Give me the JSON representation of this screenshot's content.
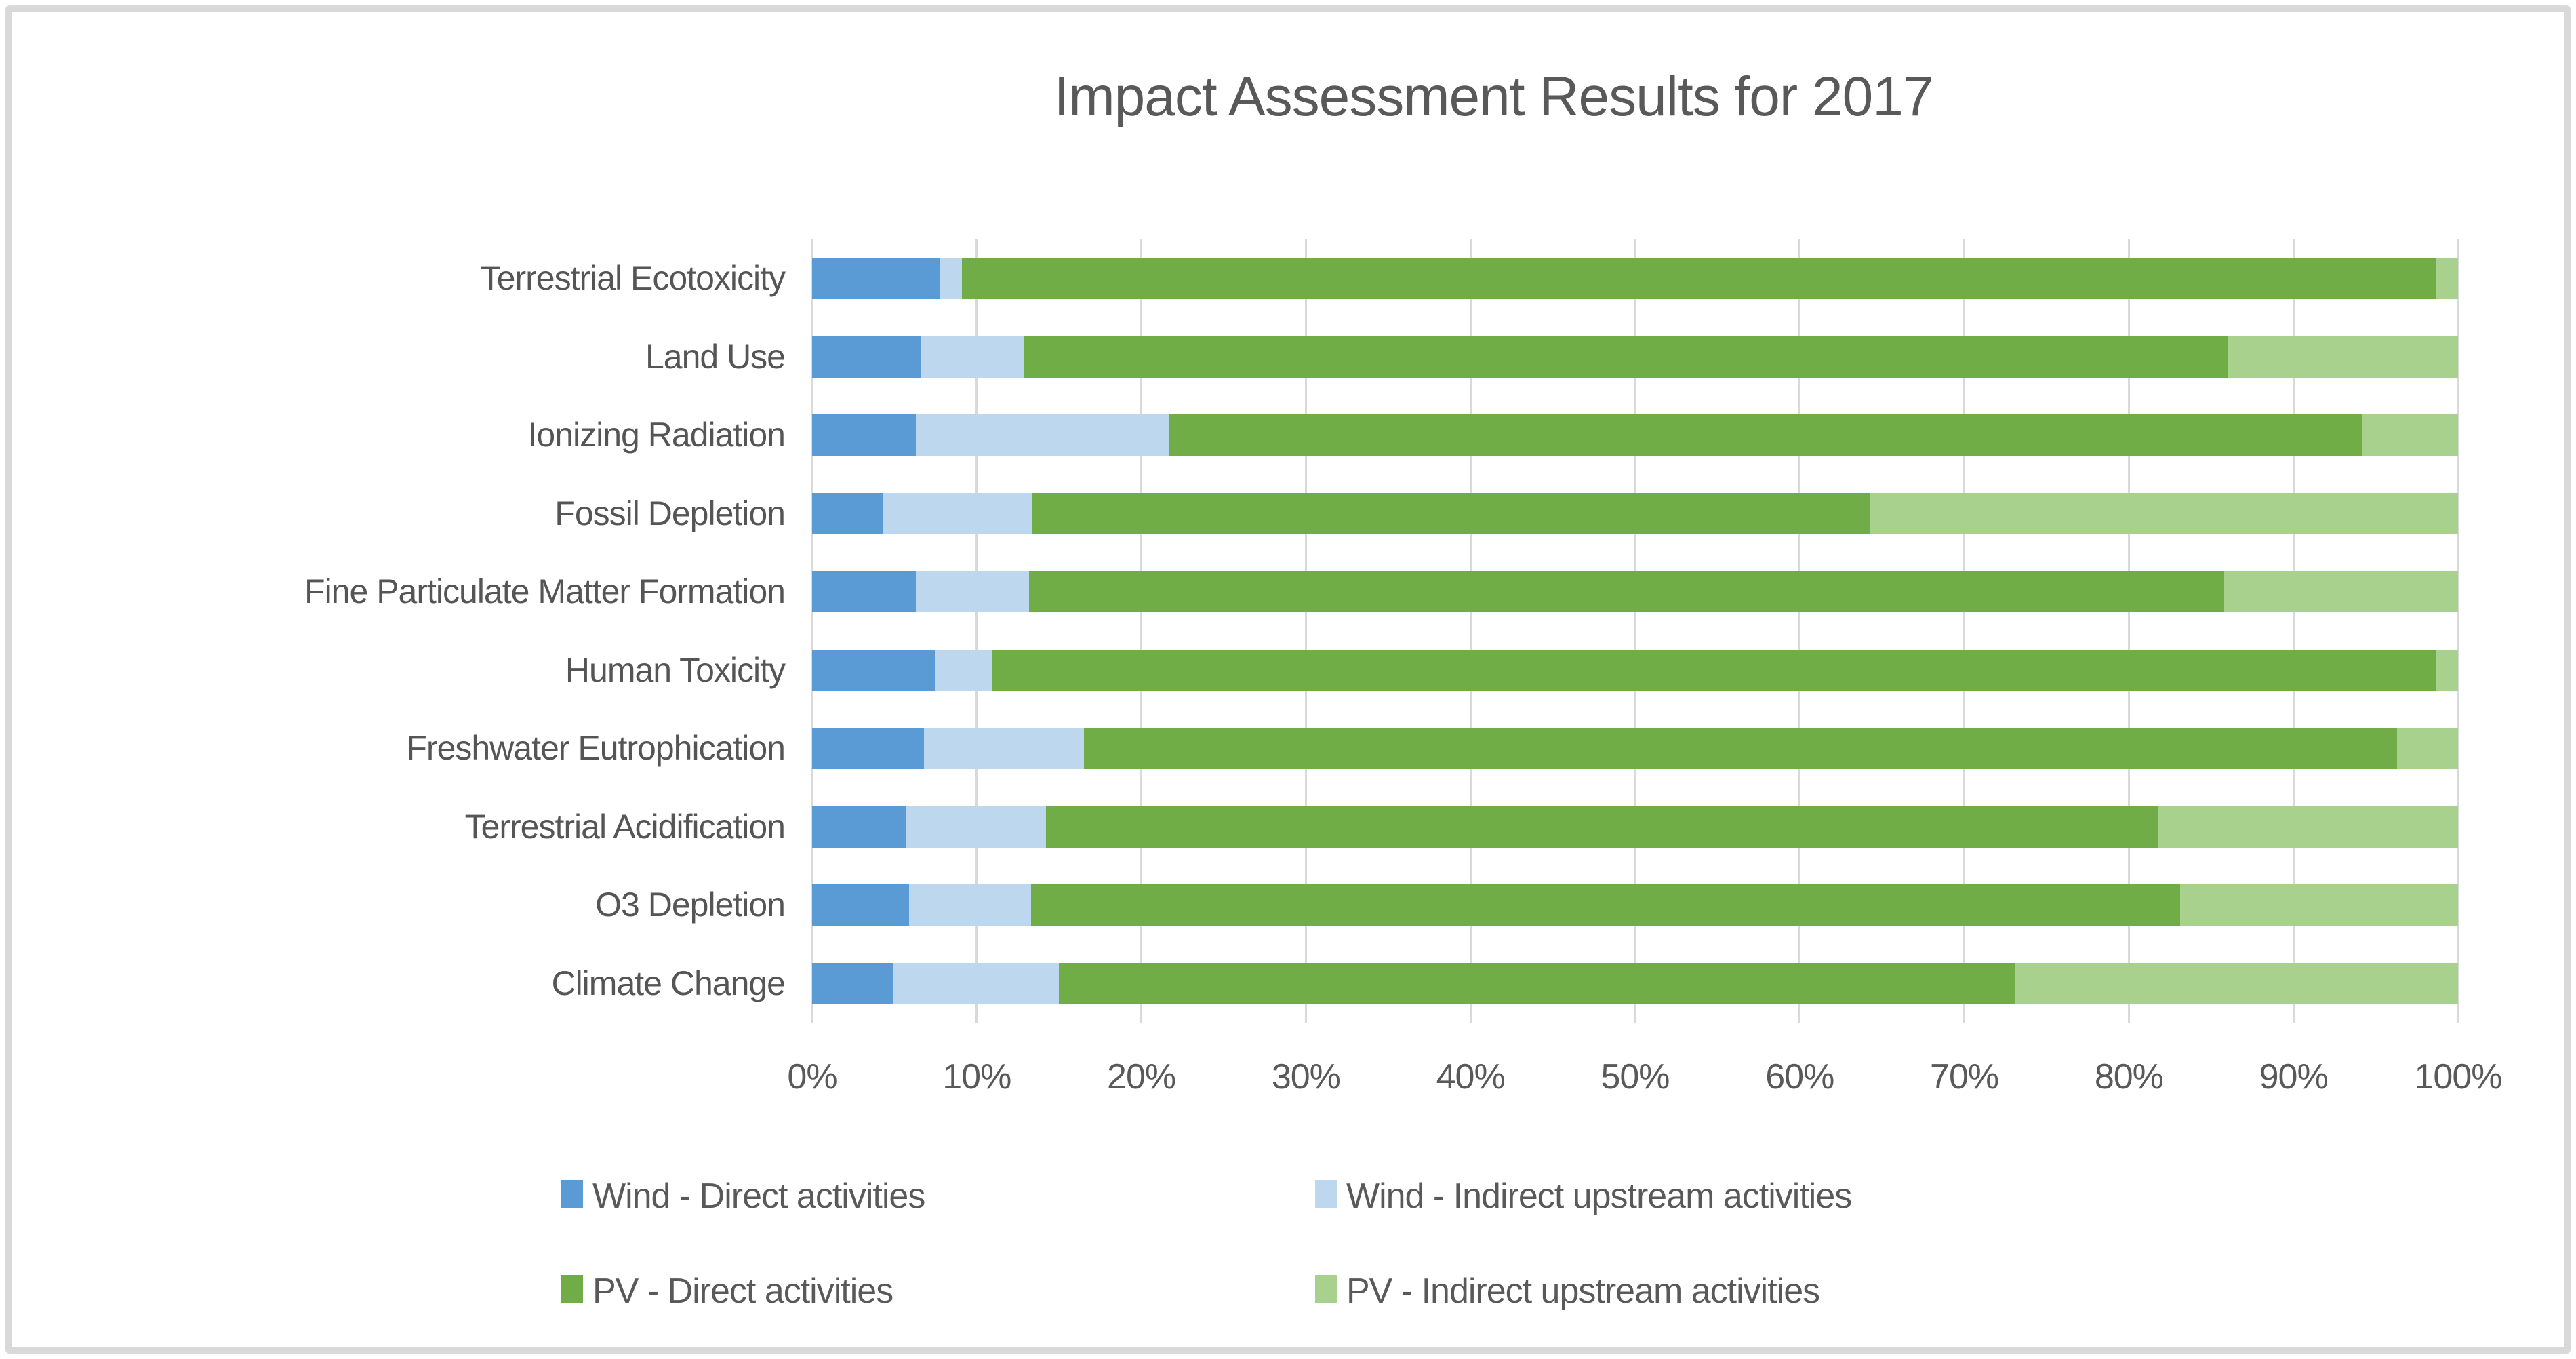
{
  "title": "Impact Assessment Results for 2017",
  "colors": {
    "wind_direct": "#5B9BD5",
    "wind_indirect": "#BDD7EE",
    "pv_direct": "#70AD47",
    "pv_indirect": "#A9D18E",
    "gridline": "#D9D9D9",
    "text": "#595959",
    "frame_border": "#D9D9D9"
  },
  "chart_data": {
    "type": "bar",
    "orientation": "horizontal-stacked",
    "title": "Impact Assessment Results for 2017",
    "xlabel": "",
    "ylabel": "",
    "xlim": [
      0,
      100
    ],
    "grid": true,
    "legend_position": "bottom",
    "x_ticks": [
      "0%",
      "10%",
      "20%",
      "30%",
      "40%",
      "50%",
      "60%",
      "70%",
      "80%",
      "90%",
      "100%"
    ],
    "categories": [
      "Terrestrial Ecotoxicity",
      "Land Use",
      "Ionizing Radiation",
      "Fossil Depletion",
      "Fine Particulate Matter Formation",
      "Human Toxicity",
      "Freshwater Eutrophication",
      "Terrestrial Acidification",
      "O3 Depletion",
      "Climate Change"
    ],
    "value_unit": "%",
    "series": [
      {
        "name": "Wind - Direct activities",
        "color": "#5B9BD5",
        "values": [
          7.8,
          6.6,
          6.3,
          4.3,
          6.3,
          7.5,
          6.8,
          5.7,
          5.9,
          4.9
        ]
      },
      {
        "name": "Wind - Indirect upstream activities",
        "color": "#BDD7EE",
        "values": [
          1.3,
          6.3,
          15.4,
          9.1,
          6.9,
          3.4,
          9.7,
          8.5,
          7.4,
          10.1
        ]
      },
      {
        "name": "PV - Direct activities",
        "color": "#70AD47",
        "values": [
          89.6,
          73.1,
          72.5,
          50.9,
          72.6,
          87.8,
          79.8,
          67.6,
          69.8,
          58.1
        ]
      },
      {
        "name": "PV - Indirect upstream activities",
        "color": "#A9D18E",
        "values": [
          1.3,
          14.0,
          5.8,
          35.7,
          14.2,
          1.3,
          3.7,
          18.2,
          16.9,
          26.9
        ]
      }
    ]
  }
}
